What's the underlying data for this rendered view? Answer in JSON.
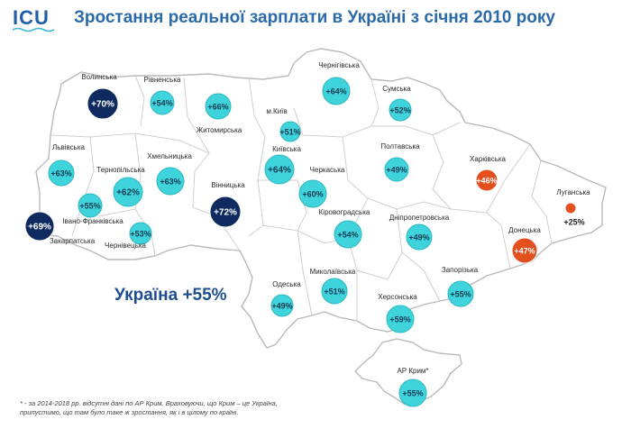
{
  "header": {
    "logo": "ICU",
    "title": "Зростання реальної зарплати в Україні з січня 2010 року"
  },
  "summary": "Україна +55%",
  "colors": {
    "high": "#0f2a5e",
    "medium": "#3fd3dc",
    "low": "#e2501e",
    "border": "#c8c8c8",
    "title": "#2a6aa8"
  },
  "regions": [
    {
      "name": "Волинська",
      "value": "+70%",
      "level": "high"
    },
    {
      "name": "Рівненська",
      "value": "+54%",
      "level": "medium"
    },
    {
      "name": "Житомирська",
      "value": "+66%",
      "level": "medium"
    },
    {
      "name": "Чернігівська",
      "value": "+64%",
      "level": "medium"
    },
    {
      "name": "Сумська",
      "value": "+52%",
      "level": "medium"
    },
    {
      "name": "м.Київ",
      "value": "+51%",
      "level": "medium"
    },
    {
      "name": "Київська",
      "value": "+64%",
      "level": "medium"
    },
    {
      "name": "Львівська",
      "value": "+63%",
      "level": "medium"
    },
    {
      "name": "Тернопільська",
      "value": "+62%",
      "level": "medium"
    },
    {
      "name": "Хмельницька",
      "value": "+63%",
      "level": "medium"
    },
    {
      "name": "Вінницька",
      "value": "+72%",
      "level": "high"
    },
    {
      "name": "Черкаська",
      "value": "+60%",
      "level": "medium"
    },
    {
      "name": "Полтавська",
      "value": "+49%",
      "level": "medium"
    },
    {
      "name": "Харківська",
      "value": "+46%",
      "level": "low"
    },
    {
      "name": "Луганська",
      "value": "+25%",
      "level": "low"
    },
    {
      "name": "Закарпатська",
      "value": "+69%",
      "level": "high"
    },
    {
      "name": "Івано-Франківська",
      "value": "+55%",
      "level": "medium"
    },
    {
      "name": "Чернівецька",
      "value": "+53%",
      "level": "medium"
    },
    {
      "name": "Кіровоградська",
      "value": "+54%",
      "level": "medium"
    },
    {
      "name": "Дніпропетровська",
      "value": "+49%",
      "level": "medium"
    },
    {
      "name": "Донецька",
      "value": "+47%",
      "level": "low"
    },
    {
      "name": "Одеська",
      "value": "+49%",
      "level": "medium"
    },
    {
      "name": "Миколаївська",
      "value": "+51%",
      "level": "medium"
    },
    {
      "name": "Херсонська",
      "value": "+59%",
      "level": "medium"
    },
    {
      "name": "Запорізька",
      "value": "+55%",
      "level": "medium"
    },
    {
      "name": "АР Крим*",
      "value": "+55%",
      "level": "medium"
    }
  ],
  "footnote": {
    "line1": "* - за 2014-2018 рр. відсутні дані по АР Крим. Враховуючи, що Крим – це Україна,",
    "line2": "припустимо, що там було таке ж зростання, як і в цілому по країні."
  }
}
